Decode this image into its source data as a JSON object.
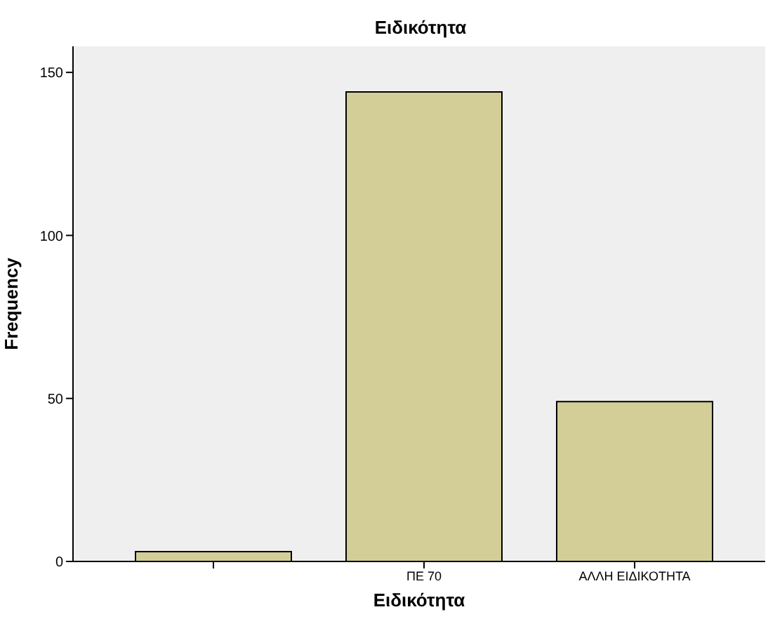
{
  "chart_data": {
    "type": "bar",
    "title": "Ειδικότητα",
    "xlabel": "Ειδικότητα",
    "ylabel": "Frequency",
    "categories": [
      null,
      "ΠΕ 70",
      "ΑΛΛΗ ΕΙΔΙΚΟΤΗΤΑ"
    ],
    "values": [
      3,
      144,
      49
    ],
    "color": "#d3ce97",
    "ylim": [
      0,
      158
    ],
    "yticks": [
      0,
      50,
      100,
      150
    ],
    "grid": false,
    "legend": false
  }
}
